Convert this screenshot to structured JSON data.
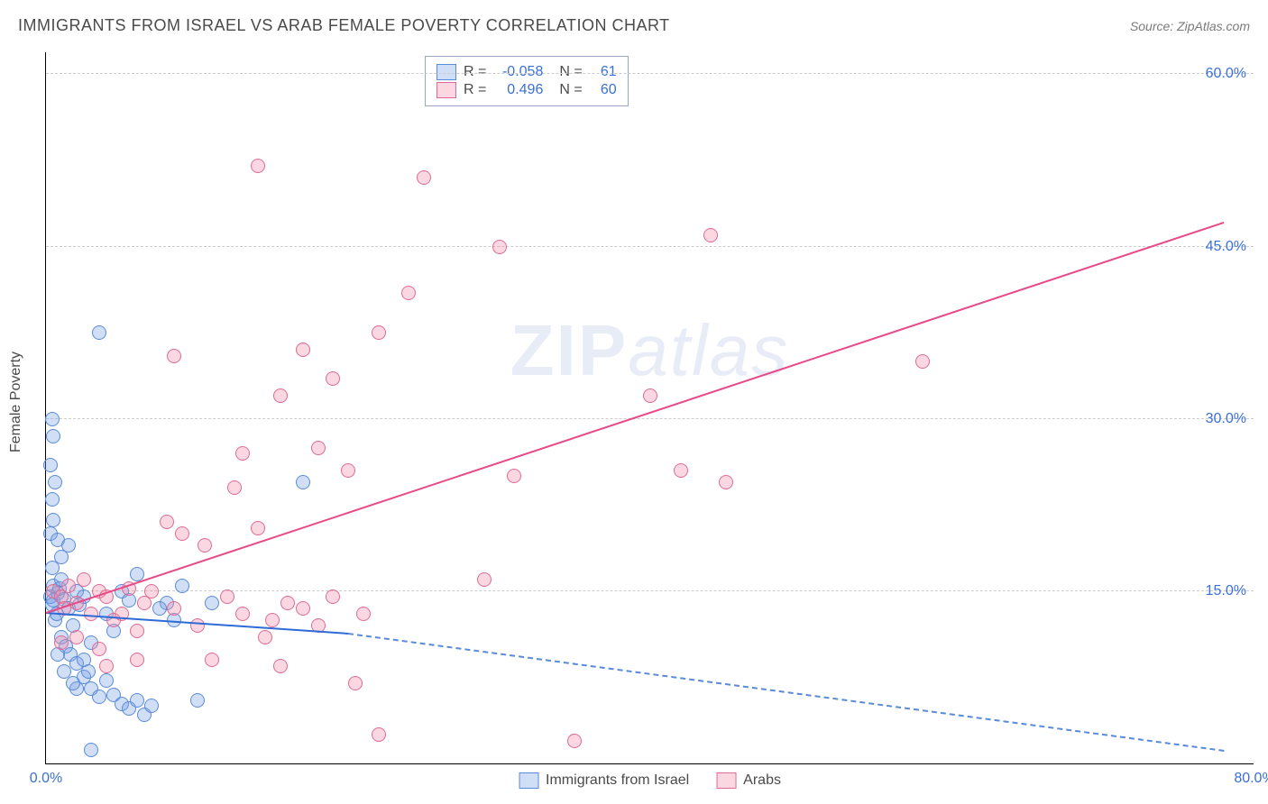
{
  "title": "IMMIGRANTS FROM ISRAEL VS ARAB FEMALE POVERTY CORRELATION CHART",
  "source": "Source: ZipAtlas.com",
  "watermark_bold": "ZIP",
  "watermark_light": "atlas",
  "y_axis_label": "Female Poverty",
  "chart": {
    "type": "scatter",
    "xlim": [
      0,
      80
    ],
    "ylim": [
      0,
      62
    ],
    "x_ticks": [
      {
        "v": 0,
        "label": "0.0%"
      },
      {
        "v": 80,
        "label": "80.0%"
      }
    ],
    "y_ticks": [
      {
        "v": 15,
        "label": "15.0%"
      },
      {
        "v": 30,
        "label": "30.0%"
      },
      {
        "v": 45,
        "label": "45.0%"
      },
      {
        "v": 60,
        "label": "60.0%"
      }
    ],
    "gridline_color": "#cccccc",
    "background_color": "#ffffff",
    "point_radius": 8,
    "series": [
      {
        "name": "Immigrants from Israel",
        "color_fill": "rgba(120,160,230,0.35)",
        "color_stroke": "#5a8bd8",
        "R": "-0.058",
        "N": "61",
        "trend": {
          "x1": 0,
          "y1": 13.0,
          "x2": 20,
          "y2": 11.2,
          "x2_ext": 78,
          "y2_ext": 1.0,
          "solid_color": "#2e6bd6",
          "dash_color": "#5a8bd8"
        },
        "points": [
          [
            0.3,
            14.5
          ],
          [
            0.4,
            13.8
          ],
          [
            0.5,
            14.2
          ],
          [
            0.6,
            12.5
          ],
          [
            0.7,
            13.0
          ],
          [
            0.8,
            14.8
          ],
          [
            0.5,
            15.5
          ],
          [
            0.9,
            15.2
          ],
          [
            1.0,
            16.0
          ],
          [
            1.2,
            14.3
          ],
          [
            0.4,
            17.0
          ],
          [
            1.5,
            13.5
          ],
          [
            1.8,
            12.0
          ],
          [
            2.0,
            15.0
          ],
          [
            2.2,
            13.8
          ],
          [
            2.5,
            14.5
          ],
          [
            1.0,
            11.0
          ],
          [
            1.3,
            10.2
          ],
          [
            1.6,
            9.5
          ],
          [
            2.0,
            8.7
          ],
          [
            2.5,
            7.5
          ],
          [
            2.8,
            8.0
          ],
          [
            3.0,
            6.5
          ],
          [
            3.5,
            5.8
          ],
          [
            4.0,
            7.2
          ],
          [
            4.5,
            6.0
          ],
          [
            5.0,
            5.2
          ],
          [
            5.5,
            4.8
          ],
          [
            6.0,
            5.5
          ],
          [
            6.5,
            4.2
          ],
          [
            7.0,
            5.0
          ],
          [
            3.0,
            1.2
          ],
          [
            0.3,
            20.0
          ],
          [
            0.5,
            21.2
          ],
          [
            0.8,
            19.5
          ],
          [
            0.4,
            23.0
          ],
          [
            0.6,
            24.5
          ],
          [
            0.3,
            26.0
          ],
          [
            0.5,
            28.5
          ],
          [
            0.4,
            30.0
          ],
          [
            3.5,
            37.5
          ],
          [
            1.0,
            18.0
          ],
          [
            1.5,
            19.0
          ],
          [
            5.0,
            15.0
          ],
          [
            5.5,
            14.2
          ],
          [
            6.0,
            16.5
          ],
          [
            8.0,
            14.0
          ],
          [
            8.5,
            12.5
          ],
          [
            9.0,
            15.5
          ],
          [
            4.0,
            13.0
          ],
          [
            4.5,
            11.5
          ],
          [
            2.0,
            6.5
          ],
          [
            2.5,
            9.0
          ],
          [
            3.0,
            10.5
          ],
          [
            1.2,
            8.0
          ],
          [
            1.8,
            7.0
          ],
          [
            0.8,
            9.5
          ],
          [
            7.5,
            13.5
          ],
          [
            10.0,
            5.5
          ],
          [
            11.0,
            14.0
          ],
          [
            17.0,
            24.5
          ]
        ]
      },
      {
        "name": "Arabs",
        "color_fill": "rgba(240,140,170,0.35)",
        "color_stroke": "#e06a95",
        "R": "0.496",
        "N": "60",
        "trend": {
          "x1": 0,
          "y1": 13.0,
          "x2": 78,
          "y2": 47.0,
          "solid_color": "#e84a87"
        },
        "points": [
          [
            0.5,
            15.0
          ],
          [
            1.0,
            14.5
          ],
          [
            1.2,
            13.5
          ],
          [
            1.5,
            15.5
          ],
          [
            2.0,
            14.0
          ],
          [
            2.5,
            16.0
          ],
          [
            3.0,
            13.0
          ],
          [
            3.5,
            15.0
          ],
          [
            4.0,
            14.5
          ],
          [
            4.5,
            12.5
          ],
          [
            5.0,
            13.0
          ],
          [
            5.5,
            15.2
          ],
          [
            6.0,
            11.5
          ],
          [
            6.5,
            14.0
          ],
          [
            7.0,
            15.0
          ],
          [
            8.0,
            21.0
          ],
          [
            8.5,
            13.5
          ],
          [
            9.0,
            20.0
          ],
          [
            10.0,
            12.0
          ],
          [
            10.5,
            19.0
          ],
          [
            11.0,
            9.0
          ],
          [
            12.0,
            14.5
          ],
          [
            12.5,
            24.0
          ],
          [
            13.0,
            13.0
          ],
          [
            14.0,
            20.5
          ],
          [
            14.5,
            11.0
          ],
          [
            15.0,
            12.5
          ],
          [
            15.5,
            8.5
          ],
          [
            16.0,
            14.0
          ],
          [
            17.0,
            13.5
          ],
          [
            18.0,
            12.0
          ],
          [
            19.0,
            14.5
          ],
          [
            20.0,
            25.5
          ],
          [
            20.5,
            7.0
          ],
          [
            21.0,
            13.0
          ],
          [
            22.0,
            2.5
          ],
          [
            8.5,
            35.5
          ],
          [
            13.0,
            27.0
          ],
          [
            14.0,
            52.0
          ],
          [
            15.5,
            32.0
          ],
          [
            17.0,
            36.0
          ],
          [
            18.0,
            27.5
          ],
          [
            19.0,
            33.5
          ],
          [
            22.0,
            37.5
          ],
          [
            24.0,
            41.0
          ],
          [
            25.0,
            51.0
          ],
          [
            29.0,
            16.0
          ],
          [
            30.0,
            45.0
          ],
          [
            31.0,
            25.0
          ],
          [
            35.0,
            2.0
          ],
          [
            40.0,
            32.0
          ],
          [
            42.0,
            25.5
          ],
          [
            44.0,
            46.0
          ],
          [
            45.0,
            24.5
          ],
          [
            58.0,
            35.0
          ],
          [
            1.0,
            10.5
          ],
          [
            2.0,
            11.0
          ],
          [
            3.5,
            10.0
          ],
          [
            4.0,
            8.5
          ],
          [
            6.0,
            9.0
          ]
        ]
      }
    ],
    "y_tick_color": "#3a6fd8",
    "label_fontsize": 16,
    "title_fontsize": 18
  },
  "stat_legend": {
    "r_label": "R =",
    "n_label": "N ="
  },
  "bottom_legend": {
    "items": [
      "Immigrants from Israel",
      "Arabs"
    ]
  }
}
